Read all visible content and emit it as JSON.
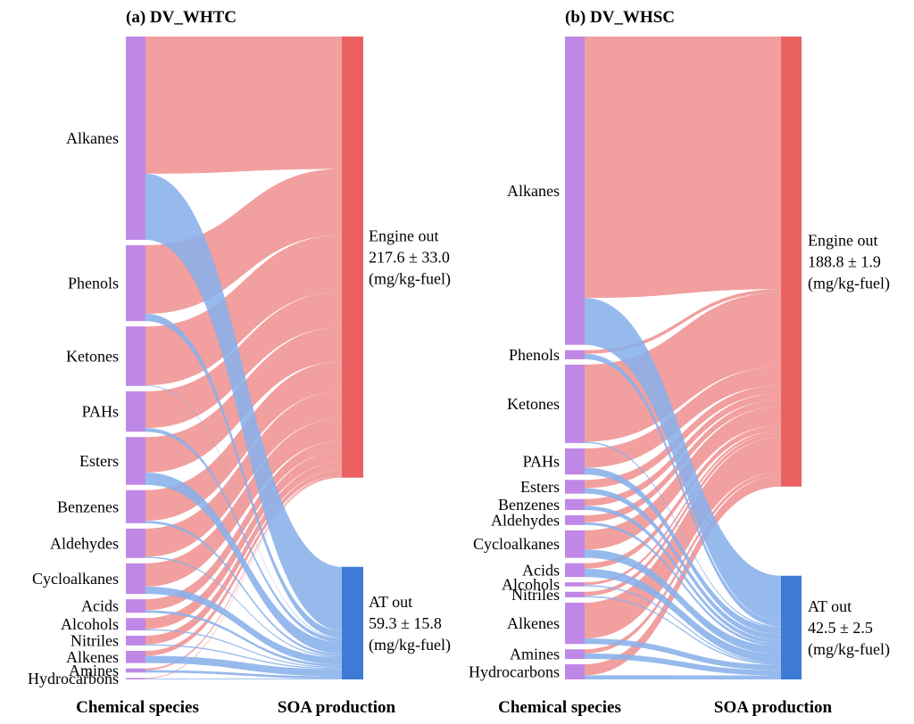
{
  "colors": {
    "species_node": "#bf88e6",
    "engine_out_node": "#eb6161",
    "at_out_node": "#3d7bd6",
    "engine_out_flow": "#f29f9f",
    "at_out_flow": "#89b1ea"
  },
  "chart_data": [
    {
      "type": "sankey",
      "title": "(a) DV_WHTC",
      "xlabel_left": "Chemical species",
      "xlabel_right": "SOA production",
      "targets": [
        {
          "key": "engine",
          "lines": [
            "Engine out",
            "217.6 ± 33.0",
            "(mg/kg-fuel)"
          ],
          "value": 217.6
        },
        {
          "key": "at",
          "lines": [
            "AT out",
            "59.3 ± 15.8",
            "(mg/kg-fuel)"
          ],
          "value": 59.3
        }
      ],
      "flows": [
        {
          "species": "Alkanes",
          "engine": 56.0,
          "at": 27.0
        },
        {
          "species": "Phenols",
          "engine": 28.0,
          "at": 3.0
        },
        {
          "species": "Ketones",
          "engine": 24.0,
          "at": 0.3
        },
        {
          "species": "PAHs",
          "engine": 15.0,
          "at": 1.5
        },
        {
          "species": "Esters",
          "engine": 14.5,
          "at": 5.0
        },
        {
          "species": "Benzenes",
          "engine": 12.5,
          "at": 1.0
        },
        {
          "species": "Aldehydes",
          "engine": 11.5,
          "at": 0.5
        },
        {
          "species": "Cycloalkanes",
          "engine": 9.5,
          "at": 3.0
        },
        {
          "species": "Acids",
          "engine": 4.5,
          "at": 1.0
        },
        {
          "species": "Alcohols",
          "engine": 4.5,
          "at": 0.5
        },
        {
          "species": "Nitriles",
          "engine": 3.5,
          "at": 0.5
        },
        {
          "species": "Alkenes",
          "engine": 2.0,
          "at": 3.0
        },
        {
          "species": "Amines",
          "engine": 0.7,
          "at": 1.0
        },
        {
          "species": "Hydrocarbons",
          "engine": 0.3,
          "at": 0.3
        }
      ]
    },
    {
      "type": "sankey",
      "title": "(b) DV_WHSC",
      "xlabel_left": "Chemical species",
      "xlabel_right": "SOA production",
      "targets": [
        {
          "key": "engine",
          "lines": [
            "Engine out",
            "188.8 ± 1.9",
            "(mg/kg-fuel)"
          ],
          "value": 188.8
        },
        {
          "key": "at",
          "lines": [
            "AT out",
            "42.5 ± 2.5",
            "(mg/kg-fuel)"
          ],
          "value": 42.5
        }
      ],
      "flows": [
        {
          "species": "Alkanes",
          "engine": 95.0,
          "at": 17.0
        },
        {
          "species": "Phenols",
          "engine": 1.3,
          "at": 2.0
        },
        {
          "species": "Ketones",
          "engine": 28.0,
          "at": 0.5
        },
        {
          "species": "PAHs",
          "engine": 7.0,
          "at": 2.5
        },
        {
          "species": "Esters",
          "engine": 3.0,
          "at": 2.0
        },
        {
          "species": "Benzenes",
          "engine": 2.5,
          "at": 1.5
        },
        {
          "species": "Aldehydes",
          "engine": 2.5,
          "at": 1.0
        },
        {
          "species": "Cycloalkanes",
          "engine": 7.0,
          "at": 3.0
        },
        {
          "species": "Acids",
          "engine": 2.0,
          "at": 3.0
        },
        {
          "species": "Alcohols",
          "engine": 1.0,
          "at": 0.5
        },
        {
          "species": "Nitriles",
          "engine": 1.5,
          "at": 0.5
        },
        {
          "species": "Alkenes",
          "engine": 13.0,
          "at": 2.0
        },
        {
          "species": "Amines",
          "engine": 1.5,
          "at": 2.0
        },
        {
          "species": "Hydrocarbons",
          "engine": 4.0,
          "at": 1.5
        }
      ]
    }
  ]
}
